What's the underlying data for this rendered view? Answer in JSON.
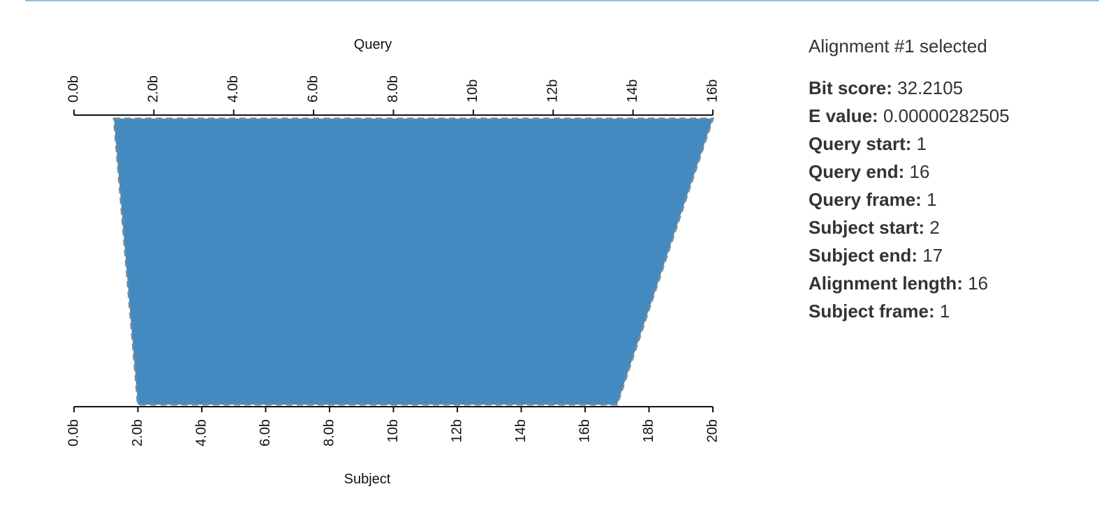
{
  "colors": {
    "fill": "#438ac0",
    "outline": "#7a8a96",
    "axis": "#111111",
    "accent_line": "#8cc0e0"
  },
  "chart_data": {
    "type": "area",
    "query_axis": {
      "label": "Query",
      "range": [
        0,
        16
      ],
      "ticks": [
        0,
        2,
        4,
        6,
        8,
        10,
        12,
        14,
        16
      ],
      "tick_labels": [
        "0.0b",
        "2.0b",
        "4.0b",
        "6.0b",
        "8.0b",
        "10b",
        "12b",
        "14b",
        "16b"
      ]
    },
    "subject_axis": {
      "label": "Subject",
      "range": [
        0,
        20
      ],
      "ticks": [
        0,
        2,
        4,
        6,
        8,
        10,
        12,
        14,
        16,
        18,
        20
      ],
      "tick_labels": [
        "0.0b",
        "2.0b",
        "4.0b",
        "6.0b",
        "8.0b",
        "10b",
        "12b",
        "14b",
        "16b",
        "18b",
        "20b"
      ]
    },
    "alignments": [
      {
        "query_start": 1,
        "query_end": 16,
        "subject_start": 2,
        "subject_end": 17
      }
    ]
  },
  "details": {
    "heading": "Alignment #1 selected",
    "rows": [
      {
        "label": "Bit score:",
        "value": "32.2105"
      },
      {
        "label": "E value:",
        "value": "0.00000282505"
      },
      {
        "label": "Query start:",
        "value": "1"
      },
      {
        "label": "Query end:",
        "value": "16"
      },
      {
        "label": "Query frame:",
        "value": "1"
      },
      {
        "label": "Subject start:",
        "value": "2"
      },
      {
        "label": "Subject end:",
        "value": "17"
      },
      {
        "label": "Alignment length:",
        "value": "16"
      },
      {
        "label": "Subject frame:",
        "value": "1"
      }
    ]
  }
}
